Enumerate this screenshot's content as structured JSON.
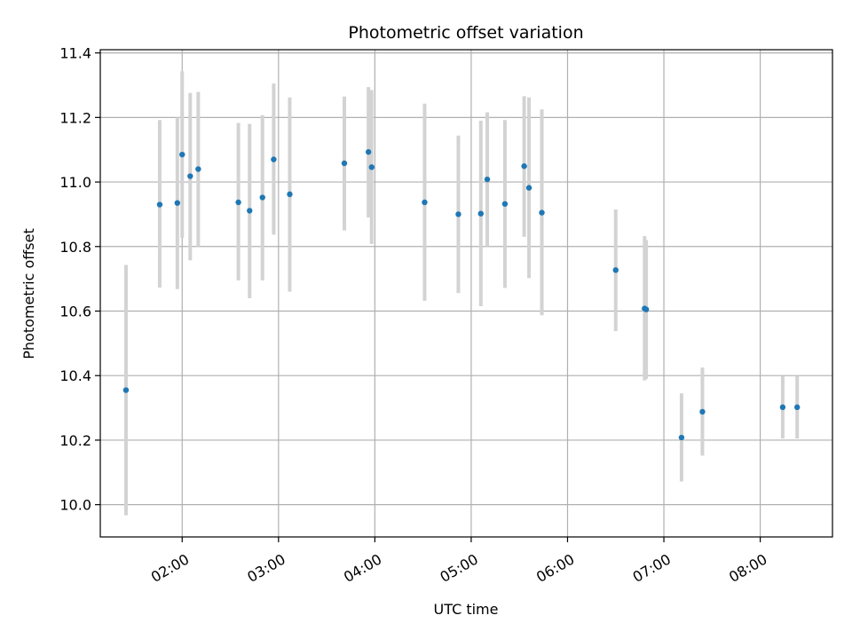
{
  "chart_data": {
    "type": "scatter",
    "title": "Photometric offset variation",
    "xlabel": "UTC time",
    "ylabel": "Photometric offset",
    "xlim": [
      "01:09",
      "08:45"
    ],
    "ylim": [
      9.9,
      11.41
    ],
    "grid": true,
    "x_ticks": [
      "02:00",
      "03:00",
      "04:00",
      "05:00",
      "06:00",
      "07:00",
      "08:00"
    ],
    "y_ticks": [
      10.0,
      10.2,
      10.4,
      10.6,
      10.8,
      11.0,
      11.2,
      11.4
    ],
    "point_color": "#1f77b4",
    "errorbar_color": "#d3d3d3",
    "points": [
      {
        "time": "01:25",
        "y": 10.355,
        "low": 9.967,
        "high": 10.743
      },
      {
        "time": "01:46",
        "y": 10.93,
        "low": 10.673,
        "high": 11.192
      },
      {
        "time": "01:57",
        "y": 10.935,
        "low": 10.668,
        "high": 11.2
      },
      {
        "time": "02:00",
        "y": 11.085,
        "low": 10.827,
        "high": 11.343
      },
      {
        "time": "02:05",
        "y": 11.018,
        "low": 10.757,
        "high": 11.276
      },
      {
        "time": "02:10",
        "y": 11.04,
        "low": 10.8,
        "high": 11.279
      },
      {
        "time": "02:35",
        "y": 10.937,
        "low": 10.695,
        "high": 11.183
      },
      {
        "time": "02:42",
        "y": 10.911,
        "low": 10.64,
        "high": 11.18
      },
      {
        "time": "02:50",
        "y": 10.952,
        "low": 10.695,
        "high": 11.207
      },
      {
        "time": "02:57",
        "y": 11.07,
        "low": 10.837,
        "high": 11.305
      },
      {
        "time": "03:07",
        "y": 10.962,
        "low": 10.66,
        "high": 11.262
      },
      {
        "time": "03:41",
        "y": 11.058,
        "low": 10.85,
        "high": 11.265
      },
      {
        "time": "03:56",
        "y": 11.093,
        "low": 10.89,
        "high": 11.294
      },
      {
        "time": "03:58",
        "y": 11.046,
        "low": 10.808,
        "high": 11.285
      },
      {
        "time": "04:31",
        "y": 10.937,
        "low": 10.632,
        "high": 11.243
      },
      {
        "time": "04:52",
        "y": 10.9,
        "low": 10.656,
        "high": 11.144
      },
      {
        "time": "05:06",
        "y": 10.902,
        "low": 10.615,
        "high": 11.19
      },
      {
        "time": "05:10",
        "y": 11.008,
        "low": 10.8,
        "high": 11.216
      },
      {
        "time": "05:21",
        "y": 10.932,
        "low": 10.672,
        "high": 11.192
      },
      {
        "time": "05:33",
        "y": 11.049,
        "low": 10.83,
        "high": 11.266
      },
      {
        "time": "05:36",
        "y": 10.982,
        "low": 10.702,
        "high": 11.262
      },
      {
        "time": "05:44",
        "y": 10.905,
        "low": 10.587,
        "high": 11.225
      },
      {
        "time": "06:30",
        "y": 10.727,
        "low": 10.538,
        "high": 10.915
      },
      {
        "time": "06:48",
        "y": 10.608,
        "low": 10.385,
        "high": 10.832
      },
      {
        "time": "06:49",
        "y": 10.605,
        "low": 10.39,
        "high": 10.82
      },
      {
        "time": "07:11",
        "y": 10.208,
        "low": 10.072,
        "high": 10.345
      },
      {
        "time": "07:24",
        "y": 10.288,
        "low": 10.152,
        "high": 10.425
      },
      {
        "time": "08:14",
        "y": 10.302,
        "low": 10.205,
        "high": 10.398
      },
      {
        "time": "08:23",
        "y": 10.302,
        "low": 10.205,
        "high": 10.398
      }
    ]
  }
}
